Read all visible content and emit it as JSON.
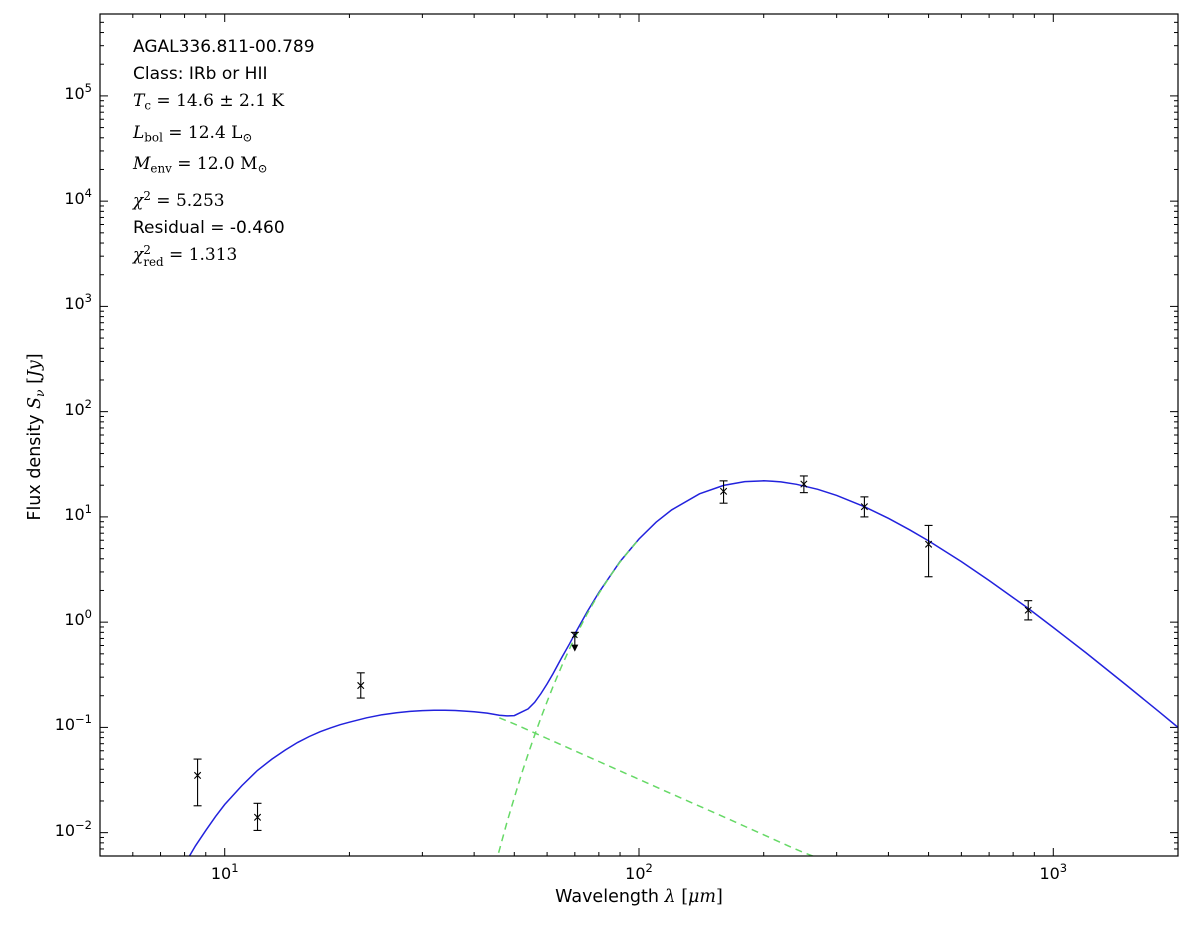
{
  "figure": {
    "background": "#ffffff",
    "frame_color": "#000000",
    "annotation_lines": [
      {
        "segments": [
          {
            "t": "AGAL336.811-00.789",
            "f": "sans"
          }
        ]
      },
      {
        "segments": [
          {
            "t": "Class: IRb or HII",
            "f": "sans"
          }
        ]
      },
      {
        "segments": [
          {
            "t": "T",
            "f": "serif-italic"
          },
          {
            "t": "c",
            "f": "serif",
            "v": "sub"
          },
          {
            "t": " = 14.6 ± 2.1 K",
            "f": "serif"
          }
        ]
      },
      {
        "segments": [
          {
            "t": "L",
            "f": "serif-italic"
          },
          {
            "t": "bol",
            "f": "serif",
            "v": "sub"
          },
          {
            "t": " = 12.4 L",
            "f": "serif"
          },
          {
            "t": "⊙",
            "f": "serif",
            "v": "sub"
          }
        ]
      },
      {
        "segments": [
          {
            "t": "M",
            "f": "serif-italic"
          },
          {
            "t": "env",
            "f": "serif",
            "v": "sub"
          },
          {
            "t": " = 12.0 M",
            "f": "serif"
          },
          {
            "t": "⊙",
            "f": "serif",
            "v": "sub"
          }
        ]
      },
      {
        "segments": [
          {
            "t": "χ",
            "f": "serif-italic"
          },
          {
            "t": "2",
            "f": "serif",
            "v": "sup"
          },
          {
            "t": " = 5.253",
            "f": "serif"
          }
        ]
      },
      {
        "segments": [
          {
            "t": "Residual = -0.460",
            "f": "sans"
          }
        ]
      },
      {
        "segments": [
          {
            "t": "χ",
            "f": "serif-italic"
          },
          {
            "stack": [
              "2",
              "red"
            ],
            "f": "serif"
          },
          {
            "t": " = 1.313",
            "f": "serif"
          }
        ]
      }
    ],
    "xlabel_segments": [
      {
        "t": "Wavelength ",
        "f": "sans"
      },
      {
        "t": "λ",
        "f": "serif-italic"
      },
      {
        "t": " [",
        "f": "serif"
      },
      {
        "t": "μm",
        "f": "serif-italic"
      },
      {
        "t": "]",
        "f": "serif"
      }
    ],
    "ylabel_segments": [
      {
        "t": "Flux density ",
        "f": "sans"
      },
      {
        "t": "S",
        "f": "serif-italic"
      },
      {
        "t": "ν",
        "f": "serif-italic",
        "v": "sub"
      },
      {
        "t": " [",
        "f": "serif"
      },
      {
        "t": "Jy",
        "f": "serif-italic"
      },
      {
        "t": "]",
        "f": "serif"
      }
    ]
  },
  "chart_data": {
    "type": "line",
    "title": "",
    "xlabel": "Wavelength λ [μm]",
    "ylabel": "Flux density Sν [Jy]",
    "x_scale": "log",
    "y_scale": "log",
    "xlim": [
      5,
      2000
    ],
    "ylim": [
      0.006,
      600000
    ],
    "x_ticks_labeled": [
      10,
      100,
      1000
    ],
    "y_ticks_labeled": [
      0.01,
      0.1,
      1,
      10,
      100,
      1000,
      10000,
      100000
    ],
    "grid": false,
    "legend": "none",
    "annotations": [
      "AGAL336.811-00.789",
      "Class: IRb or HII",
      "Tc = 14.6 ± 2.1 K",
      "Lbol = 12.4 L⊙",
      "Menv = 12.0 M⊙",
      "χ² = 5.253",
      "Residual = -0.460",
      "χ²red = 1.313"
    ],
    "series": [
      {
        "name": "total-fit",
        "color": "#2222dd",
        "style": "solid",
        "points": [
          [
            8.0,
            0.005
          ],
          [
            8.5,
            0.0075
          ],
          [
            9,
            0.0105
          ],
          [
            9.5,
            0.0142
          ],
          [
            10,
            0.0185
          ],
          [
            11,
            0.028
          ],
          [
            12,
            0.039
          ],
          [
            13,
            0.05
          ],
          [
            14,
            0.061
          ],
          [
            15,
            0.072
          ],
          [
            16,
            0.082
          ],
          [
            17,
            0.091
          ],
          [
            18,
            0.099
          ],
          [
            19,
            0.106
          ],
          [
            20,
            0.112
          ],
          [
            22,
            0.1235
          ],
          [
            24,
            0.132
          ],
          [
            26,
            0.138
          ],
          [
            28,
            0.142
          ],
          [
            30,
            0.1445
          ],
          [
            32,
            0.1456
          ],
          [
            34,
            0.1456
          ],
          [
            36,
            0.1447
          ],
          [
            38,
            0.143
          ],
          [
            40,
            0.1407
          ],
          [
            43,
            0.1366
          ],
          [
            46,
            0.1305
          ],
          [
            48,
            0.1285
          ],
          [
            50,
            0.1295
          ],
          [
            52,
            0.1395
          ],
          [
            54,
            0.15
          ],
          [
            56,
            0.173
          ],
          [
            58,
            0.21
          ],
          [
            60,
            0.259
          ],
          [
            62,
            0.324
          ],
          [
            65,
            0.456
          ],
          [
            68,
            0.624
          ],
          [
            70,
            0.772
          ],
          [
            75,
            1.256
          ],
          [
            80,
            1.917
          ],
          [
            90,
            3.76
          ],
          [
            100,
            6.16
          ],
          [
            110,
            8.9
          ],
          [
            120,
            11.68
          ],
          [
            140,
            16.58
          ],
          [
            160,
            19.92
          ],
          [
            180,
            21.65
          ],
          [
            200,
            22.02
          ],
          [
            210,
            21.86
          ],
          [
            220,
            21.5
          ],
          [
            240,
            20.42
          ],
          [
            270,
            18.28
          ],
          [
            300,
            16.0
          ],
          [
            350,
            12.51
          ],
          [
            400,
            9.7
          ],
          [
            450,
            7.54
          ],
          [
            500,
            5.92
          ],
          [
            600,
            3.76
          ],
          [
            700,
            2.49
          ],
          [
            800,
            1.71
          ],
          [
            870,
            1.35
          ],
          [
            1000,
            0.89
          ],
          [
            1200,
            0.51
          ],
          [
            1500,
            0.253
          ],
          [
            1800,
            0.141
          ],
          [
            2000,
            0.1
          ]
        ]
      },
      {
        "name": "cold-component",
        "color": "#66d966",
        "style": "dashed",
        "points": [
          [
            45,
            0.005
          ],
          [
            46,
            0.0068
          ],
          [
            48,
            0.0125
          ],
          [
            50,
            0.0215
          ],
          [
            52,
            0.0355
          ],
          [
            54,
            0.0558
          ],
          [
            56,
            0.0846
          ],
          [
            58,
            0.124
          ],
          [
            60,
            0.176
          ],
          [
            62,
            0.244
          ],
          [
            65,
            0.379
          ],
          [
            68,
            0.561
          ],
          [
            70,
            0.712
          ],
          [
            75,
            1.203
          ],
          [
            80,
            1.87
          ],
          [
            85,
            2.71
          ],
          [
            90,
            3.72
          ],
          [
            95,
            4.87
          ],
          [
            100,
            6.13
          ]
        ]
      },
      {
        "name": "warm-component",
        "color": "#66d966",
        "style": "dashed",
        "points": [
          [
            46,
            0.1235
          ],
          [
            50,
            0.108
          ],
          [
            55,
            0.0914
          ],
          [
            60,
            0.0785
          ],
          [
            65,
            0.0682
          ],
          [
            70,
            0.0599
          ],
          [
            75,
            0.0531
          ],
          [
            80,
            0.0474
          ],
          [
            90,
            0.0386
          ],
          [
            100,
            0.0321
          ],
          [
            115,
            0.0251
          ],
          [
            130,
            0.0203
          ],
          [
            150,
            0.0158
          ],
          [
            170,
            0.0127
          ],
          [
            200,
            0.00954
          ],
          [
            230,
            0.00743
          ],
          [
            250,
            0.00646
          ],
          [
            265,
            0.00592
          ],
          [
            275,
            0.00546
          ]
        ]
      }
    ],
    "data_points": [
      {
        "x": 8.6,
        "y": 0.035,
        "ylo": 0.018,
        "yhi": 0.05
      },
      {
        "x": 12,
        "y": 0.014,
        "ylo": 0.0105,
        "yhi": 0.019
      },
      {
        "x": 21.3,
        "y": 0.25,
        "ylo": 0.19,
        "yhi": 0.33
      },
      {
        "x": 70,
        "y": 0.75,
        "yhi": 0.8,
        "arrow_to": 0.56,
        "upper_limit": true
      },
      {
        "x": 160,
        "y": 17.5,
        "ylo": 13.5,
        "yhi": 22
      },
      {
        "x": 250,
        "y": 20.5,
        "ylo": 17,
        "yhi": 24.5
      },
      {
        "x": 350,
        "y": 12.5,
        "ylo": 10,
        "yhi": 15.5
      },
      {
        "x": 500,
        "y": 5.5,
        "ylo": 2.7,
        "yhi": 8.3
      },
      {
        "x": 870,
        "y": 1.3,
        "ylo": 1.05,
        "yhi": 1.6
      }
    ]
  }
}
